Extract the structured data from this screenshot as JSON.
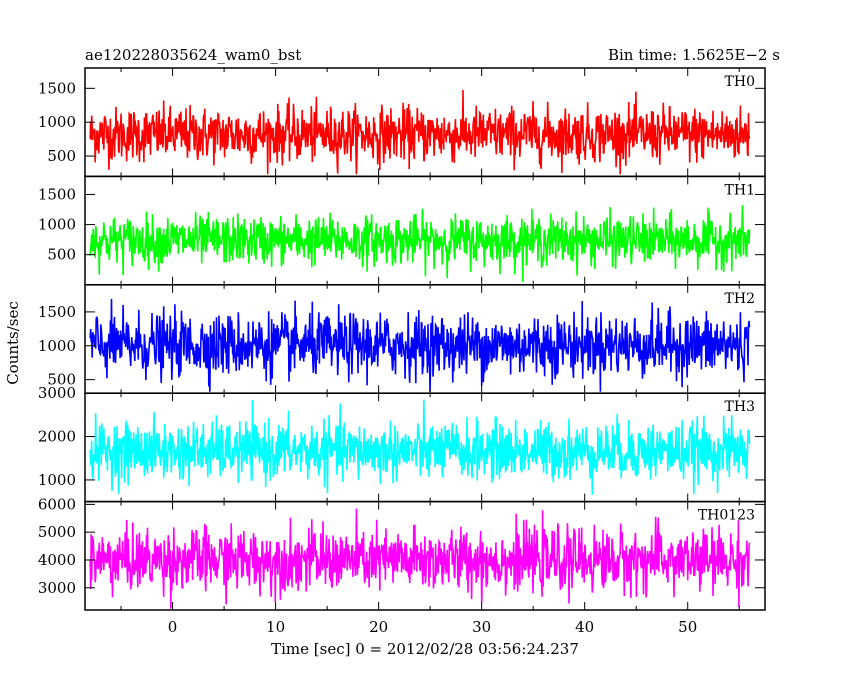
{
  "header": {
    "left": "ae120228035624_wam0_bst",
    "right": "Bin time: 1.5625E−2 s"
  },
  "axes": {
    "ylabel": "Counts/sec",
    "xlabel": "Time [sec] 0 = 2012/02/28 03:56:24.237"
  },
  "chart_data": {
    "type": "line",
    "bin_time_s": 0.015625,
    "x_range": [
      -8.5,
      57.5
    ],
    "x_data_range": [
      -8.0,
      56.0
    ],
    "x_ticks": [
      0,
      10,
      20,
      30,
      40,
      50
    ],
    "x_tick_labels": [
      "0",
      "10",
      "20",
      "30",
      "40",
      "50"
    ],
    "series": [
      {
        "name": "TH0",
        "color": "#ff0000",
        "ylim": [
          200,
          1800
        ],
        "y_ticks": [
          500,
          1000,
          1500
        ],
        "y_tick_labels": [
          "500",
          "1000",
          "1500"
        ],
        "mean": 820,
        "spread": 200,
        "min_env": 230,
        "max_env": 1750
      },
      {
        "name": "TH1",
        "color": "#00ff00",
        "ylim": [
          0,
          1800
        ],
        "y_ticks": [
          500,
          1000,
          1500
        ],
        "y_tick_labels": [
          "500",
          "1000",
          "1500"
        ],
        "mean": 740,
        "spread": 200,
        "min_env": 50,
        "max_env": 1650
      },
      {
        "name": "TH2",
        "color": "#0000ff",
        "ylim": [
          300,
          1900
        ],
        "y_ticks": [
          500,
          1000,
          1500
        ],
        "y_tick_labels": [
          "500",
          "1000",
          "1500"
        ],
        "mean": 1010,
        "spread": 230,
        "min_env": 320,
        "max_env": 1900
      },
      {
        "name": "TH3",
        "color": "#00ffff",
        "ylim": [
          500,
          3000
        ],
        "y_ticks": [
          1000,
          2000,
          3000
        ],
        "y_tick_labels": [
          "1000",
          "2000",
          "3000"
        ],
        "mean": 1670,
        "spread": 330,
        "min_env": 620,
        "max_env": 3000
      },
      {
        "name": "TH0123",
        "color": "#ff00ff",
        "ylim": [
          2200,
          6100
        ],
        "y_ticks": [
          3000,
          4000,
          5000,
          6000
        ],
        "y_tick_labels": [
          "3000",
          "4000",
          "5000",
          "6000"
        ],
        "mean": 4000,
        "spread": 560,
        "min_env": 2250,
        "max_env": 6050
      }
    ]
  }
}
